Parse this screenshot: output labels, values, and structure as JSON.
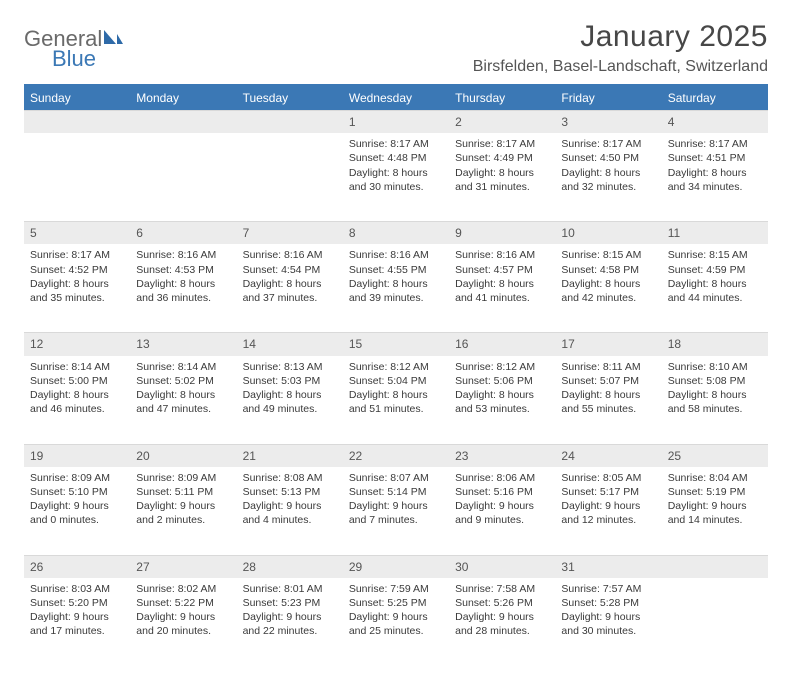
{
  "logo": {
    "word1": "General",
    "word2": "Blue"
  },
  "title": "January 2025",
  "location": "Birsfelden, Basel-Landschaft, Switzerland",
  "colors": {
    "accent": "#3b78b5",
    "header_text": "#ffffff",
    "daynum_bg": "#ececec",
    "body_text": "#3a3a3a",
    "divider": "#3b78b5"
  },
  "day_headers": [
    "Sunday",
    "Monday",
    "Tuesday",
    "Wednesday",
    "Thursday",
    "Friday",
    "Saturday"
  ],
  "weeks": [
    [
      {
        "n": "",
        "lines": []
      },
      {
        "n": "",
        "lines": []
      },
      {
        "n": "",
        "lines": []
      },
      {
        "n": "1",
        "lines": [
          "Sunrise: 8:17 AM",
          "Sunset: 4:48 PM",
          "Daylight: 8 hours and 30 minutes."
        ]
      },
      {
        "n": "2",
        "lines": [
          "Sunrise: 8:17 AM",
          "Sunset: 4:49 PM",
          "Daylight: 8 hours and 31 minutes."
        ]
      },
      {
        "n": "3",
        "lines": [
          "Sunrise: 8:17 AM",
          "Sunset: 4:50 PM",
          "Daylight: 8 hours and 32 minutes."
        ]
      },
      {
        "n": "4",
        "lines": [
          "Sunrise: 8:17 AM",
          "Sunset: 4:51 PM",
          "Daylight: 8 hours and 34 minutes."
        ]
      }
    ],
    [
      {
        "n": "5",
        "lines": [
          "Sunrise: 8:17 AM",
          "Sunset: 4:52 PM",
          "Daylight: 8 hours and 35 minutes."
        ]
      },
      {
        "n": "6",
        "lines": [
          "Sunrise: 8:16 AM",
          "Sunset: 4:53 PM",
          "Daylight: 8 hours and 36 minutes."
        ]
      },
      {
        "n": "7",
        "lines": [
          "Sunrise: 8:16 AM",
          "Sunset: 4:54 PM",
          "Daylight: 8 hours and 37 minutes."
        ]
      },
      {
        "n": "8",
        "lines": [
          "Sunrise: 8:16 AM",
          "Sunset: 4:55 PM",
          "Daylight: 8 hours and 39 minutes."
        ]
      },
      {
        "n": "9",
        "lines": [
          "Sunrise: 8:16 AM",
          "Sunset: 4:57 PM",
          "Daylight: 8 hours and 41 minutes."
        ]
      },
      {
        "n": "10",
        "lines": [
          "Sunrise: 8:15 AM",
          "Sunset: 4:58 PM",
          "Daylight: 8 hours and 42 minutes."
        ]
      },
      {
        "n": "11",
        "lines": [
          "Sunrise: 8:15 AM",
          "Sunset: 4:59 PM",
          "Daylight: 8 hours and 44 minutes."
        ]
      }
    ],
    [
      {
        "n": "12",
        "lines": [
          "Sunrise: 8:14 AM",
          "Sunset: 5:00 PM",
          "Daylight: 8 hours and 46 minutes."
        ]
      },
      {
        "n": "13",
        "lines": [
          "Sunrise: 8:14 AM",
          "Sunset: 5:02 PM",
          "Daylight: 8 hours and 47 minutes."
        ]
      },
      {
        "n": "14",
        "lines": [
          "Sunrise: 8:13 AM",
          "Sunset: 5:03 PM",
          "Daylight: 8 hours and 49 minutes."
        ]
      },
      {
        "n": "15",
        "lines": [
          "Sunrise: 8:12 AM",
          "Sunset: 5:04 PM",
          "Daylight: 8 hours and 51 minutes."
        ]
      },
      {
        "n": "16",
        "lines": [
          "Sunrise: 8:12 AM",
          "Sunset: 5:06 PM",
          "Daylight: 8 hours and 53 minutes."
        ]
      },
      {
        "n": "17",
        "lines": [
          "Sunrise: 8:11 AM",
          "Sunset: 5:07 PM",
          "Daylight: 8 hours and 55 minutes."
        ]
      },
      {
        "n": "18",
        "lines": [
          "Sunrise: 8:10 AM",
          "Sunset: 5:08 PM",
          "Daylight: 8 hours and 58 minutes."
        ]
      }
    ],
    [
      {
        "n": "19",
        "lines": [
          "Sunrise: 8:09 AM",
          "Sunset: 5:10 PM",
          "Daylight: 9 hours and 0 minutes."
        ]
      },
      {
        "n": "20",
        "lines": [
          "Sunrise: 8:09 AM",
          "Sunset: 5:11 PM",
          "Daylight: 9 hours and 2 minutes."
        ]
      },
      {
        "n": "21",
        "lines": [
          "Sunrise: 8:08 AM",
          "Sunset: 5:13 PM",
          "Daylight: 9 hours and 4 minutes."
        ]
      },
      {
        "n": "22",
        "lines": [
          "Sunrise: 8:07 AM",
          "Sunset: 5:14 PM",
          "Daylight: 9 hours and 7 minutes."
        ]
      },
      {
        "n": "23",
        "lines": [
          "Sunrise: 8:06 AM",
          "Sunset: 5:16 PM",
          "Daylight: 9 hours and 9 minutes."
        ]
      },
      {
        "n": "24",
        "lines": [
          "Sunrise: 8:05 AM",
          "Sunset: 5:17 PM",
          "Daylight: 9 hours and 12 minutes."
        ]
      },
      {
        "n": "25",
        "lines": [
          "Sunrise: 8:04 AM",
          "Sunset: 5:19 PM",
          "Daylight: 9 hours and 14 minutes."
        ]
      }
    ],
    [
      {
        "n": "26",
        "lines": [
          "Sunrise: 8:03 AM",
          "Sunset: 5:20 PM",
          "Daylight: 9 hours and 17 minutes."
        ]
      },
      {
        "n": "27",
        "lines": [
          "Sunrise: 8:02 AM",
          "Sunset: 5:22 PM",
          "Daylight: 9 hours and 20 minutes."
        ]
      },
      {
        "n": "28",
        "lines": [
          "Sunrise: 8:01 AM",
          "Sunset: 5:23 PM",
          "Daylight: 9 hours and 22 minutes."
        ]
      },
      {
        "n": "29",
        "lines": [
          "Sunrise: 7:59 AM",
          "Sunset: 5:25 PM",
          "Daylight: 9 hours and 25 minutes."
        ]
      },
      {
        "n": "30",
        "lines": [
          "Sunrise: 7:58 AM",
          "Sunset: 5:26 PM",
          "Daylight: 9 hours and 28 minutes."
        ]
      },
      {
        "n": "31",
        "lines": [
          "Sunrise: 7:57 AM",
          "Sunset: 5:28 PM",
          "Daylight: 9 hours and 30 minutes."
        ]
      },
      {
        "n": "",
        "lines": []
      }
    ]
  ]
}
